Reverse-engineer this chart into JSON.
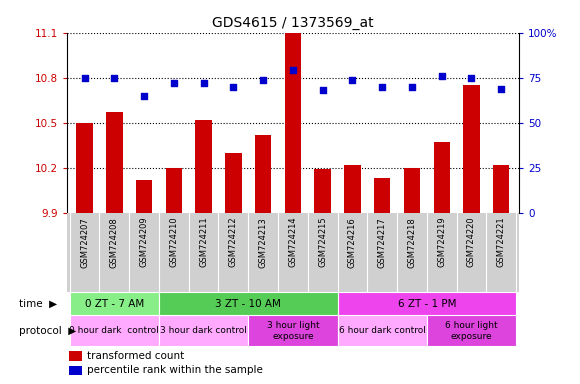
{
  "title": "GDS4615 / 1373569_at",
  "samples": [
    "GSM724207",
    "GSM724208",
    "GSM724209",
    "GSM724210",
    "GSM724211",
    "GSM724212",
    "GSM724213",
    "GSM724214",
    "GSM724215",
    "GSM724216",
    "GSM724217",
    "GSM724218",
    "GSM724219",
    "GSM724220",
    "GSM724221"
  ],
  "bar_values": [
    10.5,
    10.57,
    10.12,
    10.2,
    10.52,
    10.3,
    10.42,
    11.1,
    10.19,
    10.22,
    10.13,
    10.2,
    10.37,
    10.75,
    10.22
  ],
  "dot_values": [
    75,
    75,
    65,
    72,
    72,
    70,
    74,
    79,
    68,
    74,
    70,
    70,
    76,
    75,
    69
  ],
  "ylim_left": [
    9.9,
    11.1
  ],
  "ylim_right": [
    0,
    100
  ],
  "yticks_left": [
    9.9,
    10.2,
    10.5,
    10.8,
    11.1
  ],
  "yticks_right": [
    0,
    25,
    50,
    75,
    100
  ],
  "ytick_labels_left": [
    "9.9",
    "10.2",
    "10.5",
    "10.8",
    "11.1"
  ],
  "ytick_labels_right": [
    "0",
    "25",
    "50",
    "75",
    "100%"
  ],
  "bar_color": "#cc0000",
  "dot_color": "#0000cc",
  "bar_baseline": 9.9,
  "xticklabel_bg": "#d0d0d0",
  "time_groups": [
    {
      "label": "0 ZT - 7 AM",
      "start": 0,
      "end": 3,
      "color": "#88ee88"
    },
    {
      "label": "3 ZT - 10 AM",
      "start": 3,
      "end": 9,
      "color": "#55cc55"
    },
    {
      "label": "6 ZT - 1 PM",
      "start": 9,
      "end": 15,
      "color": "#ee44ee"
    }
  ],
  "protocol_groups": [
    {
      "label": "0 hour dark  control",
      "start": 0,
      "end": 3,
      "color": "#ffaaff"
    },
    {
      "label": "3 hour dark control",
      "start": 3,
      "end": 6,
      "color": "#ffaaff"
    },
    {
      "label": "3 hour light\nexposure",
      "start": 6,
      "end": 9,
      "color": "#dd44dd"
    },
    {
      "label": "6 hour dark control",
      "start": 9,
      "end": 12,
      "color": "#ffaaff"
    },
    {
      "label": "6 hour light\nexposure",
      "start": 12,
      "end": 15,
      "color": "#dd44dd"
    }
  ],
  "legend_items": [
    {
      "label": "transformed count",
      "color": "#cc0000"
    },
    {
      "label": "percentile rank within the sample",
      "color": "#0000cc"
    }
  ]
}
